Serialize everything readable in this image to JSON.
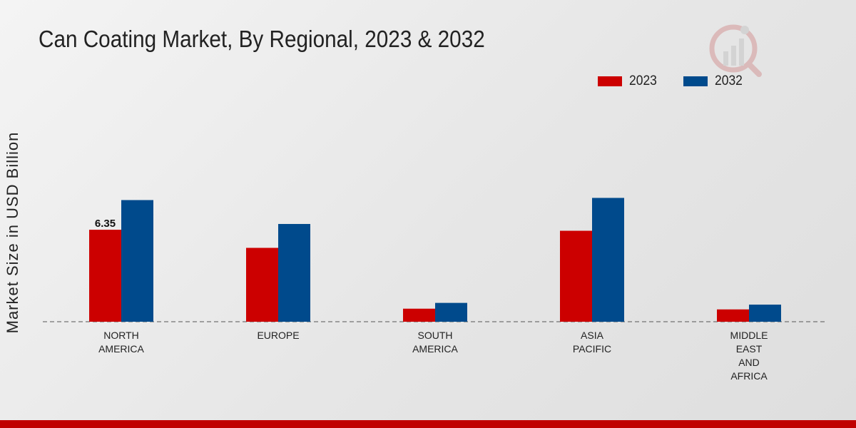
{
  "chart_data": {
    "type": "bar",
    "title": "Can Coating Market, By Regional, 2023 & 2032",
    "xlabel": "",
    "ylabel": "Market Size in USD Billion",
    "categories": [
      "NORTH\nAMERICA",
      "EUROPE",
      "SOUTH\nAMERICA",
      "ASIA\nPACIFIC",
      "MIDDLE\nEAST\nAND\nAFRICA"
    ],
    "series": [
      {
        "name": "2023",
        "color": "#cc0000",
        "values": [
          6.35,
          5.1,
          0.9,
          6.28,
          0.85
        ]
      },
      {
        "name": "2032",
        "color": "#004a8c",
        "values": [
          8.4,
          6.75,
          1.3,
          8.55,
          1.18
        ]
      }
    ],
    "data_labels": [
      {
        "series": 0,
        "index": 0,
        "text": "6.35"
      }
    ],
    "ylim": [
      0,
      14.5
    ],
    "grid": false,
    "legend_position": "top-right"
  }
}
